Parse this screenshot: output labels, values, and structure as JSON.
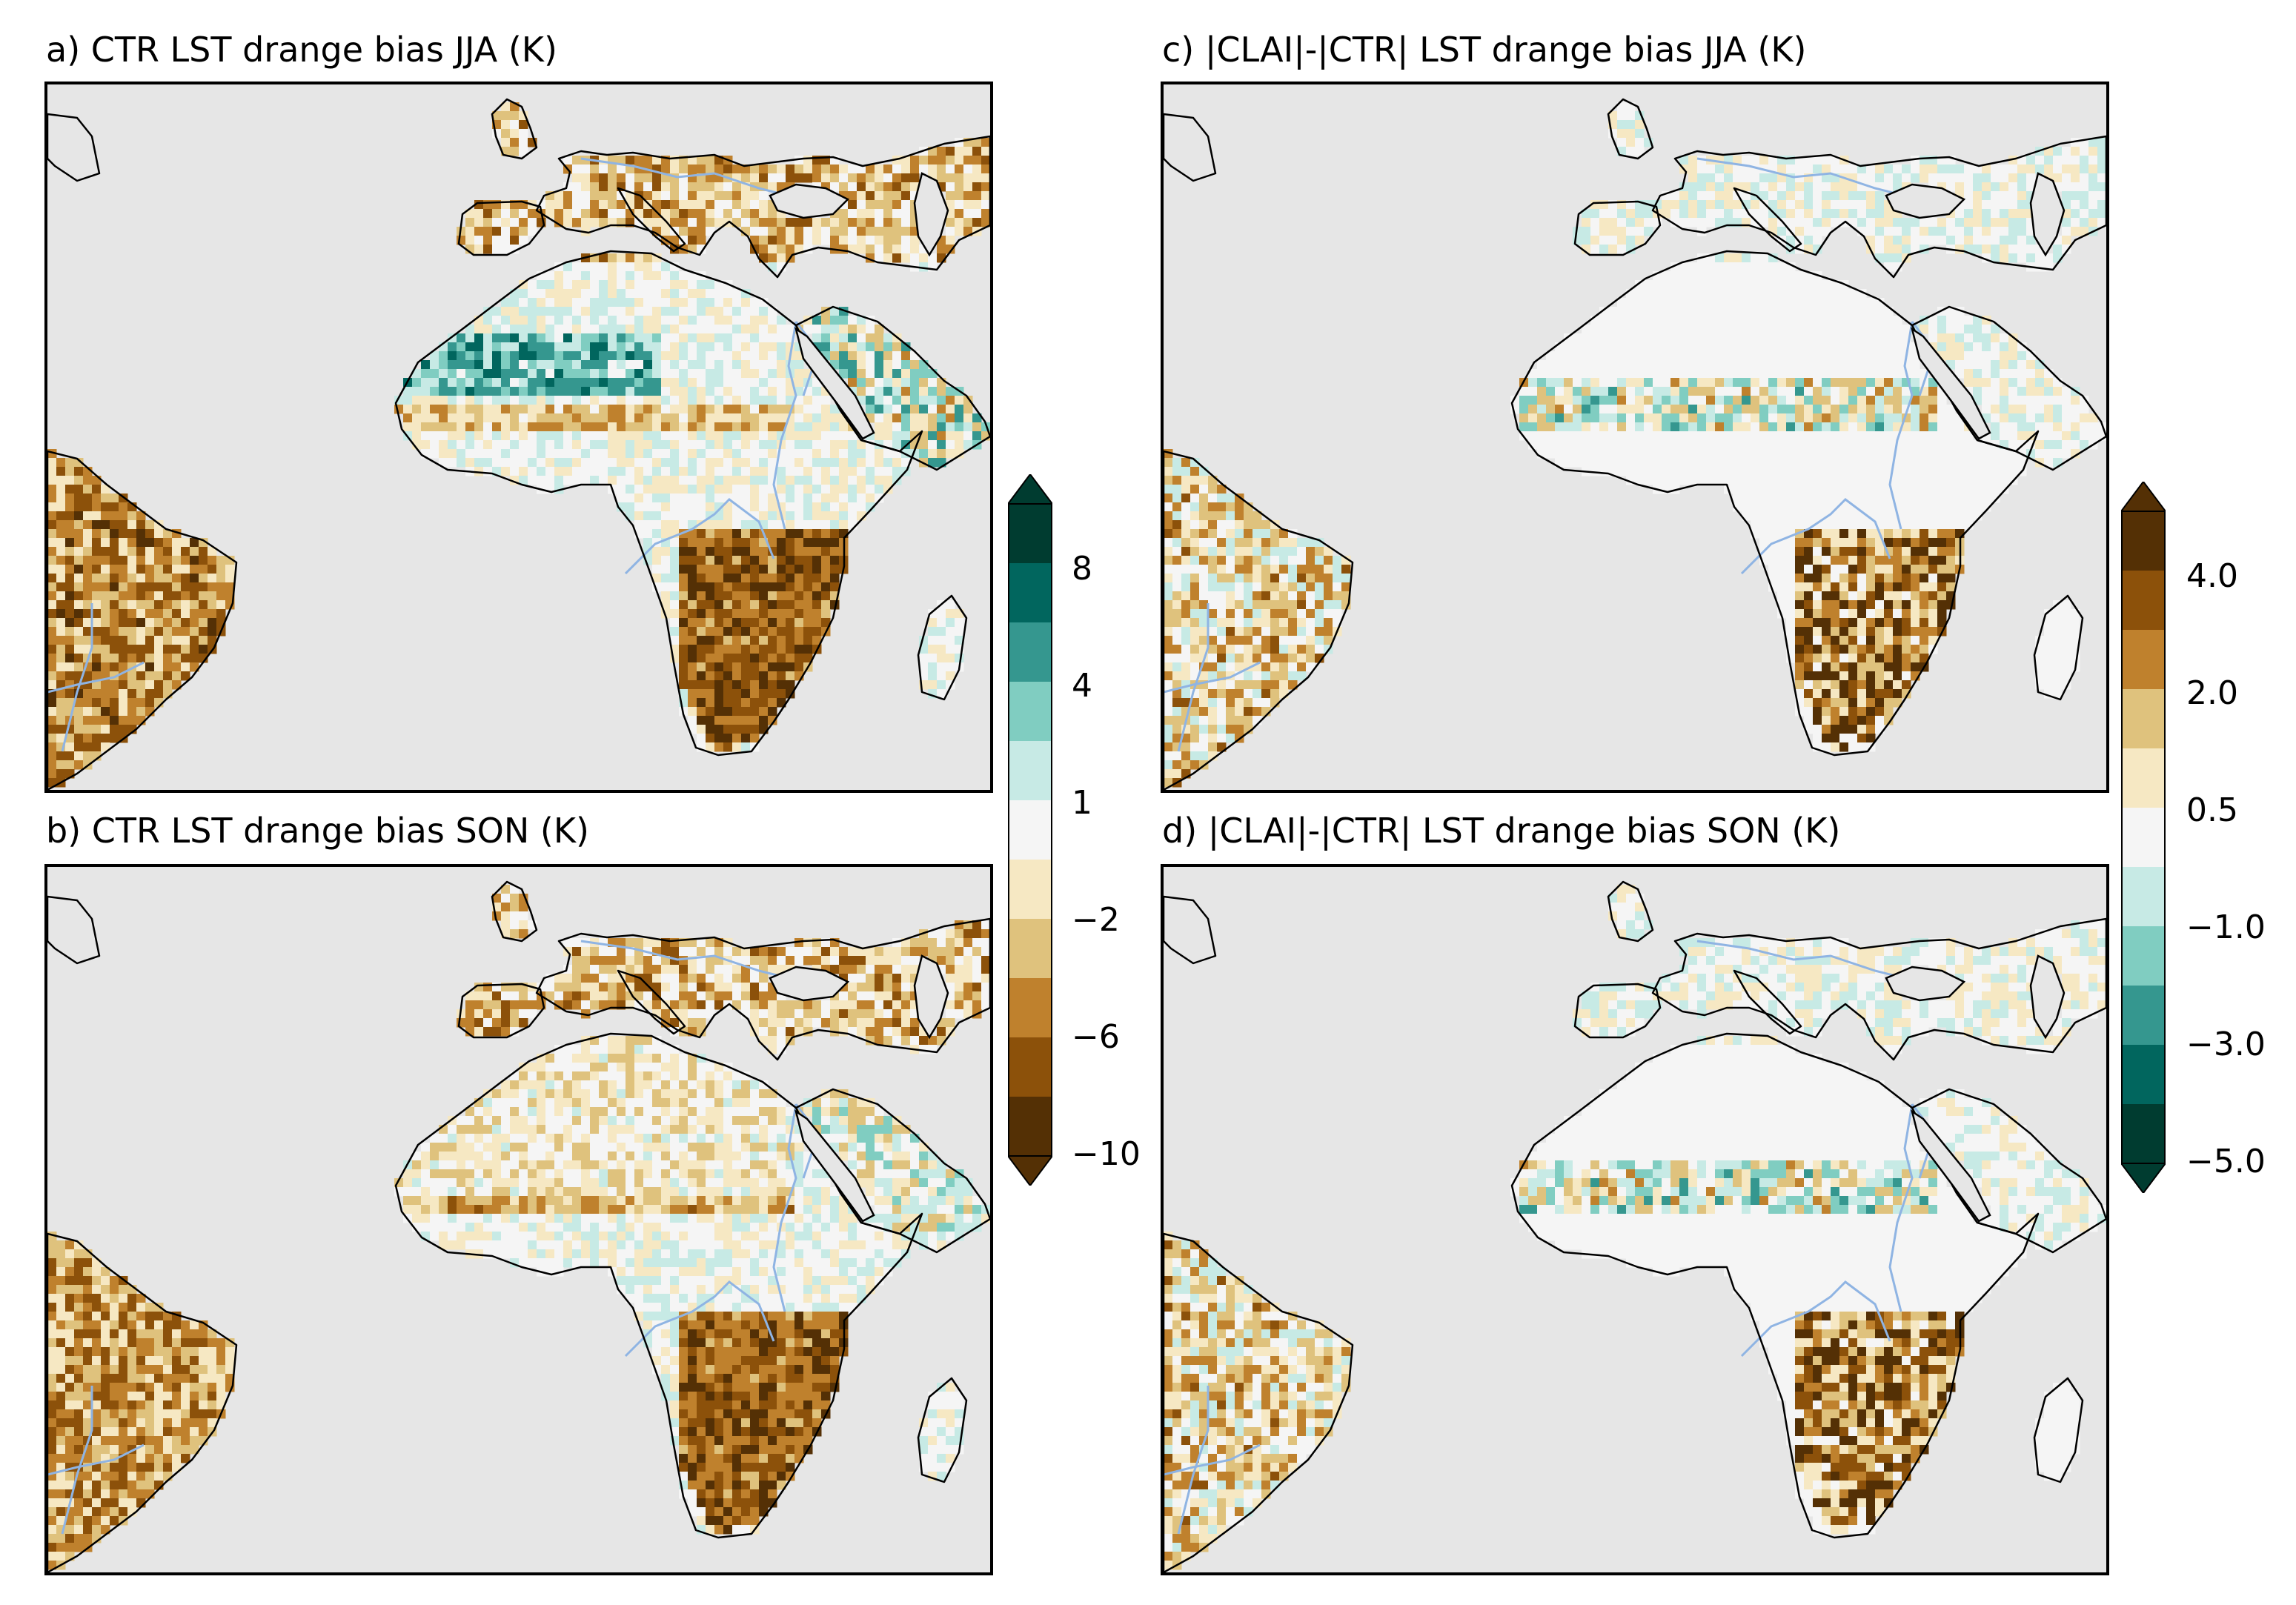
{
  "figure": {
    "panels": [
      {
        "id": "a",
        "title": "a) CTR LST drange bias JJA (K)",
        "season": "JJA",
        "variable": "CTR LST drange bias",
        "colormap": "bias"
      },
      {
        "id": "b",
        "title": "b) CTR LST drange bias SON (K)",
        "season": "SON",
        "variable": "CTR LST drange bias",
        "colormap": "bias"
      },
      {
        "id": "c",
        "title": "c) |CLAI|-|CTR| LST drange bias JJA (K)",
        "season": "JJA",
        "variable": "|CLAI|-|CTR| LST drange bias",
        "colormap": "diff"
      },
      {
        "id": "d",
        "title": "d) |CLAI|-|CTR| LST drange bias SON (K)",
        "season": "SON",
        "variable": "|CLAI|-|CTR| LST drange bias",
        "colormap": "diff"
      }
    ],
    "colorbar_left": {
      "ticks": [
        "8",
        "4",
        "1",
        "−2",
        "−6",
        "−10"
      ],
      "levels": [
        -10,
        -8,
        -6,
        -4,
        -2,
        -1,
        1,
        2,
        4,
        6,
        8,
        10
      ],
      "colors": [
        "#543005",
        "#8c510a",
        "#bf812d",
        "#dfc27d",
        "#f6e8c3",
        "#f5f5f5",
        "#c7eae5",
        "#80cdc1",
        "#35978f",
        "#01665e",
        "#003c30"
      ],
      "extend": "both"
    },
    "colorbar_right": {
      "ticks": [
        "4.0",
        "2.0",
        "0.5",
        "−1.0",
        "−3.0",
        "−5.0"
      ],
      "levels": [
        -5,
        -4,
        -3,
        -2,
        -1,
        -0.5,
        0.5,
        1,
        2,
        3,
        4,
        5
      ],
      "colors": [
        "#003c30",
        "#01665e",
        "#35978f",
        "#80cdc1",
        "#c7eae5",
        "#f5f5f5",
        "#f6e8c3",
        "#dfc27d",
        "#bf812d",
        "#8c510a",
        "#543005"
      ],
      "extend": "both"
    },
    "colors": {
      "ocean": "#e6e6e6",
      "coast": "#000000",
      "river": "#8fb4e3",
      "neutral_land": "#f4f4f4"
    }
  }
}
